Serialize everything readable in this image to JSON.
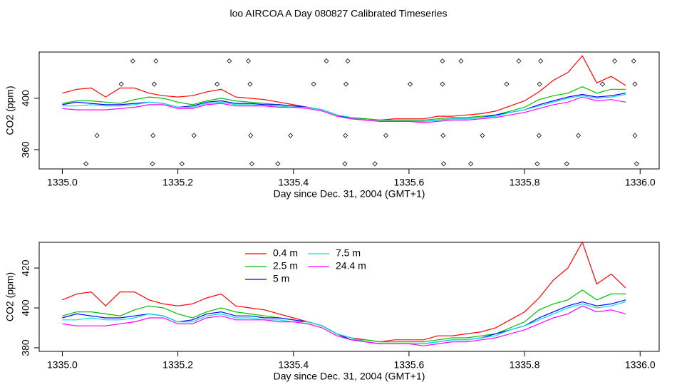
{
  "title": "loo AIRCOA A  Day 080827  Calibrated Timeseries",
  "chart_data": [
    {
      "type": "line",
      "xlabel": "Day since Dec. 31, 2004 (GMT+1)",
      "ylabel": "CO2 (ppm)",
      "xlim": [
        1334.96,
        1336.033
      ],
      "ylim": [
        345,
        436
      ],
      "xticks": [
        {
          "value": 1335,
          "label": "1335.0"
        },
        1335.2,
        1335.4,
        1335.6,
        1335.8,
        {
          "value": 1336,
          "label": "1336.0"
        }
      ],
      "yticks": [
        360,
        400
      ],
      "x": [
        1335,
        1335.025,
        1335.05,
        1335.075,
        1335.1,
        1335.125,
        1335.15,
        1335.175,
        1335.2,
        1335.225,
        1335.25,
        1335.275,
        1335.3,
        1335.325,
        1335.35,
        1335.375,
        1335.4,
        1335.425,
        1335.45,
        1335.475,
        1335.5,
        1335.525,
        1335.55,
        1335.575,
        1335.6,
        1335.625,
        1335.65,
        1335.675,
        1335.7,
        1335.725,
        1335.75,
        1335.775,
        1335.8,
        1335.825,
        1335.85,
        1335.875,
        1335.9,
        1335.925,
        1335.95,
        1335.975
      ],
      "series": [
        {
          "color": "#ff0000",
          "values": [
            404,
            407,
            408,
            401,
            408,
            408,
            404,
            402,
            401,
            402,
            405,
            407,
            401,
            400,
            399,
            397,
            395,
            393,
            391,
            387,
            385,
            384,
            383,
            384,
            384,
            384,
            386,
            386,
            387,
            388,
            390,
            394,
            398,
            405,
            414,
            420,
            433,
            412,
            417,
            410
          ]
        },
        {
          "color": "#00c000",
          "values": [
            396,
            398,
            398,
            397,
            396,
            399,
            401,
            400,
            397,
            395,
            398,
            400,
            398,
            397,
            396,
            395,
            394,
            393,
            391,
            387,
            384,
            384,
            383,
            383,
            383,
            383,
            384,
            385,
            385,
            386,
            387,
            390,
            393,
            399,
            402,
            404,
            409,
            404,
            407,
            407
          ]
        },
        {
          "color": "#0000ff",
          "values": [
            395,
            397,
            396,
            395,
            395,
            396,
            397,
            396,
            393,
            394,
            397,
            398,
            396,
            396,
            395,
            395,
            394,
            393,
            391,
            387,
            384,
            383,
            382,
            382,
            382,
            382,
            383,
            384,
            384,
            385,
            387,
            389,
            391,
            395,
            398,
            401,
            403,
            401,
            402,
            404
          ]
        },
        {
          "color": "#00e0e0",
          "values": [
            394,
            394,
            395,
            394,
            394,
            395,
            397,
            396,
            393,
            393,
            396,
            397,
            395,
            395,
            394,
            394,
            393,
            393,
            391,
            387,
            385,
            383,
            382,
            382,
            382,
            382,
            383,
            384,
            384,
            385,
            386,
            389,
            391,
            394,
            397,
            400,
            402,
            400,
            401,
            403
          ]
        },
        {
          "color": "#ff00ff",
          "values": [
            392,
            391,
            391,
            391,
            392,
            393,
            395,
            395,
            392,
            392,
            395,
            396,
            394,
            394,
            394,
            393,
            393,
            392,
            390,
            386,
            384,
            383,
            382,
            382,
            382,
            381,
            382,
            383,
            383,
            384,
            385,
            387,
            389,
            392,
            395,
            397,
            401,
            398,
            399,
            397
          ]
        }
      ],
      "points": {
        "x": [
          1335.122,
          1335.162,
          1335.289,
          1335.322,
          1335.457,
          1335.494,
          1335.658,
          1335.69,
          1335.79,
          1335.828,
          1335.956,
          1335.989,
          1335.102,
          1335.159,
          1335.268,
          1335.325,
          1335.435,
          1335.491,
          1335.602,
          1335.658,
          1335.769,
          1335.826,
          1335.935,
          1335.991,
          1335.06,
          1335.157,
          1335.228,
          1335.326,
          1335.395,
          1335.49,
          1335.56,
          1335.659,
          1335.727,
          1335.825,
          1335.893,
          1335.991,
          1335.041,
          1335.156,
          1335.207,
          1335.328,
          1335.373,
          1335.489,
          1335.541,
          1335.66,
          1335.707,
          1335.822,
          1335.873,
          1335.994
        ],
        "y": [
          429,
          429,
          429,
          429,
          429,
          429,
          429,
          429,
          429,
          429,
          429,
          429,
          411,
          411,
          411,
          411,
          411,
          411,
          411,
          411,
          411,
          411,
          411,
          411,
          371,
          371,
          371,
          371,
          371,
          371,
          371,
          371,
          371,
          371,
          371,
          371,
          349,
          349,
          349,
          349,
          349,
          349,
          349,
          349,
          349,
          349,
          349,
          349
        ]
      }
    },
    {
      "type": "line",
      "xlabel": "Day since Dec. 31, 2004 (GMT+1)",
      "ylabel": "CO2 (ppm)",
      "xlim": [
        1334.96,
        1336.033
      ],
      "ylim": [
        378.2,
        432.9
      ],
      "xticks": [
        {
          "value": 1335,
          "label": "1335.0"
        },
        1335.2,
        1335.4,
        1335.6,
        1335.8,
        {
          "value": 1336,
          "label": "1336.0"
        }
      ],
      "yticks": [
        380,
        400,
        420
      ],
      "x": [
        1335,
        1335.025,
        1335.05,
        1335.075,
        1335.1,
        1335.125,
        1335.15,
        1335.175,
        1335.2,
        1335.225,
        1335.25,
        1335.275,
        1335.3,
        1335.325,
        1335.35,
        1335.375,
        1335.4,
        1335.425,
        1335.45,
        1335.475,
        1335.5,
        1335.525,
        1335.55,
        1335.575,
        1335.6,
        1335.625,
        1335.65,
        1335.675,
        1335.7,
        1335.725,
        1335.75,
        1335.775,
        1335.8,
        1335.825,
        1335.85,
        1335.875,
        1335.9,
        1335.925,
        1335.95,
        1335.975
      ],
      "series": [
        {
          "name": "0.4 m",
          "color": "#ff0000",
          "values": [
            404,
            407,
            408,
            401,
            408,
            408,
            404,
            402,
            401,
            402,
            405,
            407,
            401,
            400,
            399,
            397,
            395,
            393,
            391,
            387,
            385,
            384,
            383,
            384,
            384,
            384,
            386,
            386,
            387,
            388,
            390,
            394,
            398,
            405,
            414,
            420,
            433,
            412,
            417,
            410
          ]
        },
        {
          "name": "2.5 m",
          "color": "#00c000",
          "values": [
            396,
            398,
            398,
            397,
            396,
            399,
            401,
            400,
            397,
            395,
            398,
            400,
            398,
            397,
            396,
            395,
            394,
            393,
            391,
            387,
            384,
            384,
            383,
            383,
            383,
            383,
            384,
            385,
            385,
            386,
            387,
            390,
            393,
            399,
            402,
            404,
            409,
            404,
            407,
            407
          ]
        },
        {
          "name": "5 m",
          "color": "#0000ff",
          "values": [
            395,
            397,
            396,
            395,
            395,
            396,
            397,
            396,
            393,
            394,
            397,
            398,
            396,
            396,
            395,
            395,
            394,
            393,
            391,
            387,
            384,
            383,
            382,
            382,
            382,
            382,
            383,
            384,
            384,
            385,
            387,
            389,
            391,
            395,
            398,
            401,
            403,
            401,
            402,
            404
          ]
        },
        {
          "name": "7.5 m",
          "color": "#00e0e0",
          "values": [
            394,
            394,
            395,
            394,
            394,
            395,
            397,
            396,
            393,
            393,
            396,
            397,
            395,
            395,
            394,
            394,
            393,
            393,
            391,
            387,
            385,
            383,
            382,
            382,
            382,
            382,
            383,
            384,
            384,
            385,
            386,
            389,
            391,
            394,
            397,
            400,
            402,
            400,
            401,
            403
          ]
        },
        {
          "name": "24.4 m",
          "color": "#ff00ff",
          "values": [
            392,
            391,
            391,
            391,
            392,
            393,
            395,
            395,
            392,
            392,
            395,
            396,
            394,
            394,
            394,
            393,
            393,
            392,
            390,
            386,
            384,
            383,
            382,
            382,
            382,
            381,
            382,
            383,
            383,
            384,
            385,
            387,
            389,
            392,
            395,
            397,
            401,
            398,
            399,
            397
          ]
        }
      ]
    }
  ]
}
